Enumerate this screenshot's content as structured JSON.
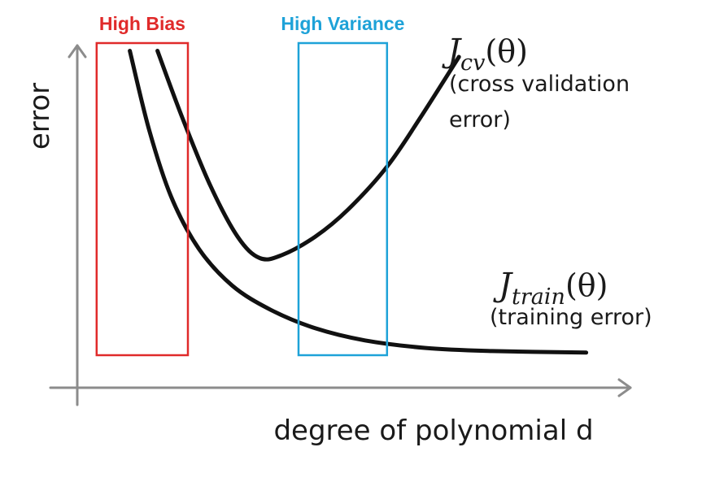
{
  "chart_data": {
    "type": "line",
    "title": "",
    "xlabel": "degree of polynomial d",
    "ylabel": "error",
    "xlim": [
      0,
      10
    ],
    "ylim": [
      0,
      10
    ],
    "grid": false,
    "series": [
      {
        "name": "J_cv(θ)",
        "math": {
          "base": "J",
          "sub": "cv",
          "arg": "(θ)"
        },
        "description": [
          "(cross validation",
          "error)"
        ],
        "x": [
          1.45,
          1.9,
          2.4,
          2.9,
          3.3,
          3.7,
          4.3,
          4.9,
          5.6,
          6.2,
          6.9
        ],
        "y": [
          10.2,
          8.0,
          5.8,
          4.1,
          3.4,
          3.5,
          4.1,
          5.0,
          6.4,
          8.0,
          10.0
        ]
      },
      {
        "name": "J_train(θ)",
        "math": {
          "base": "J",
          "sub": "train",
          "arg": "(θ)"
        },
        "description": [
          "(training error)"
        ],
        "x": [
          0.95,
          1.3,
          1.7,
          2.2,
          2.8,
          3.5,
          4.3,
          5.2,
          6.3,
          7.5,
          9.2
        ],
        "y": [
          10.2,
          7.6,
          5.4,
          3.7,
          2.5,
          1.7,
          1.1,
          0.7,
          0.45,
          0.35,
          0.3
        ]
      }
    ],
    "regions": [
      {
        "label": "High Bias",
        "color": "#e02a2a",
        "x_range": [
          0.35,
          2.0
        ]
      },
      {
        "label": "High Variance",
        "color": "#1ea2d8",
        "x_range": [
          4.0,
          5.6
        ]
      }
    ]
  }
}
